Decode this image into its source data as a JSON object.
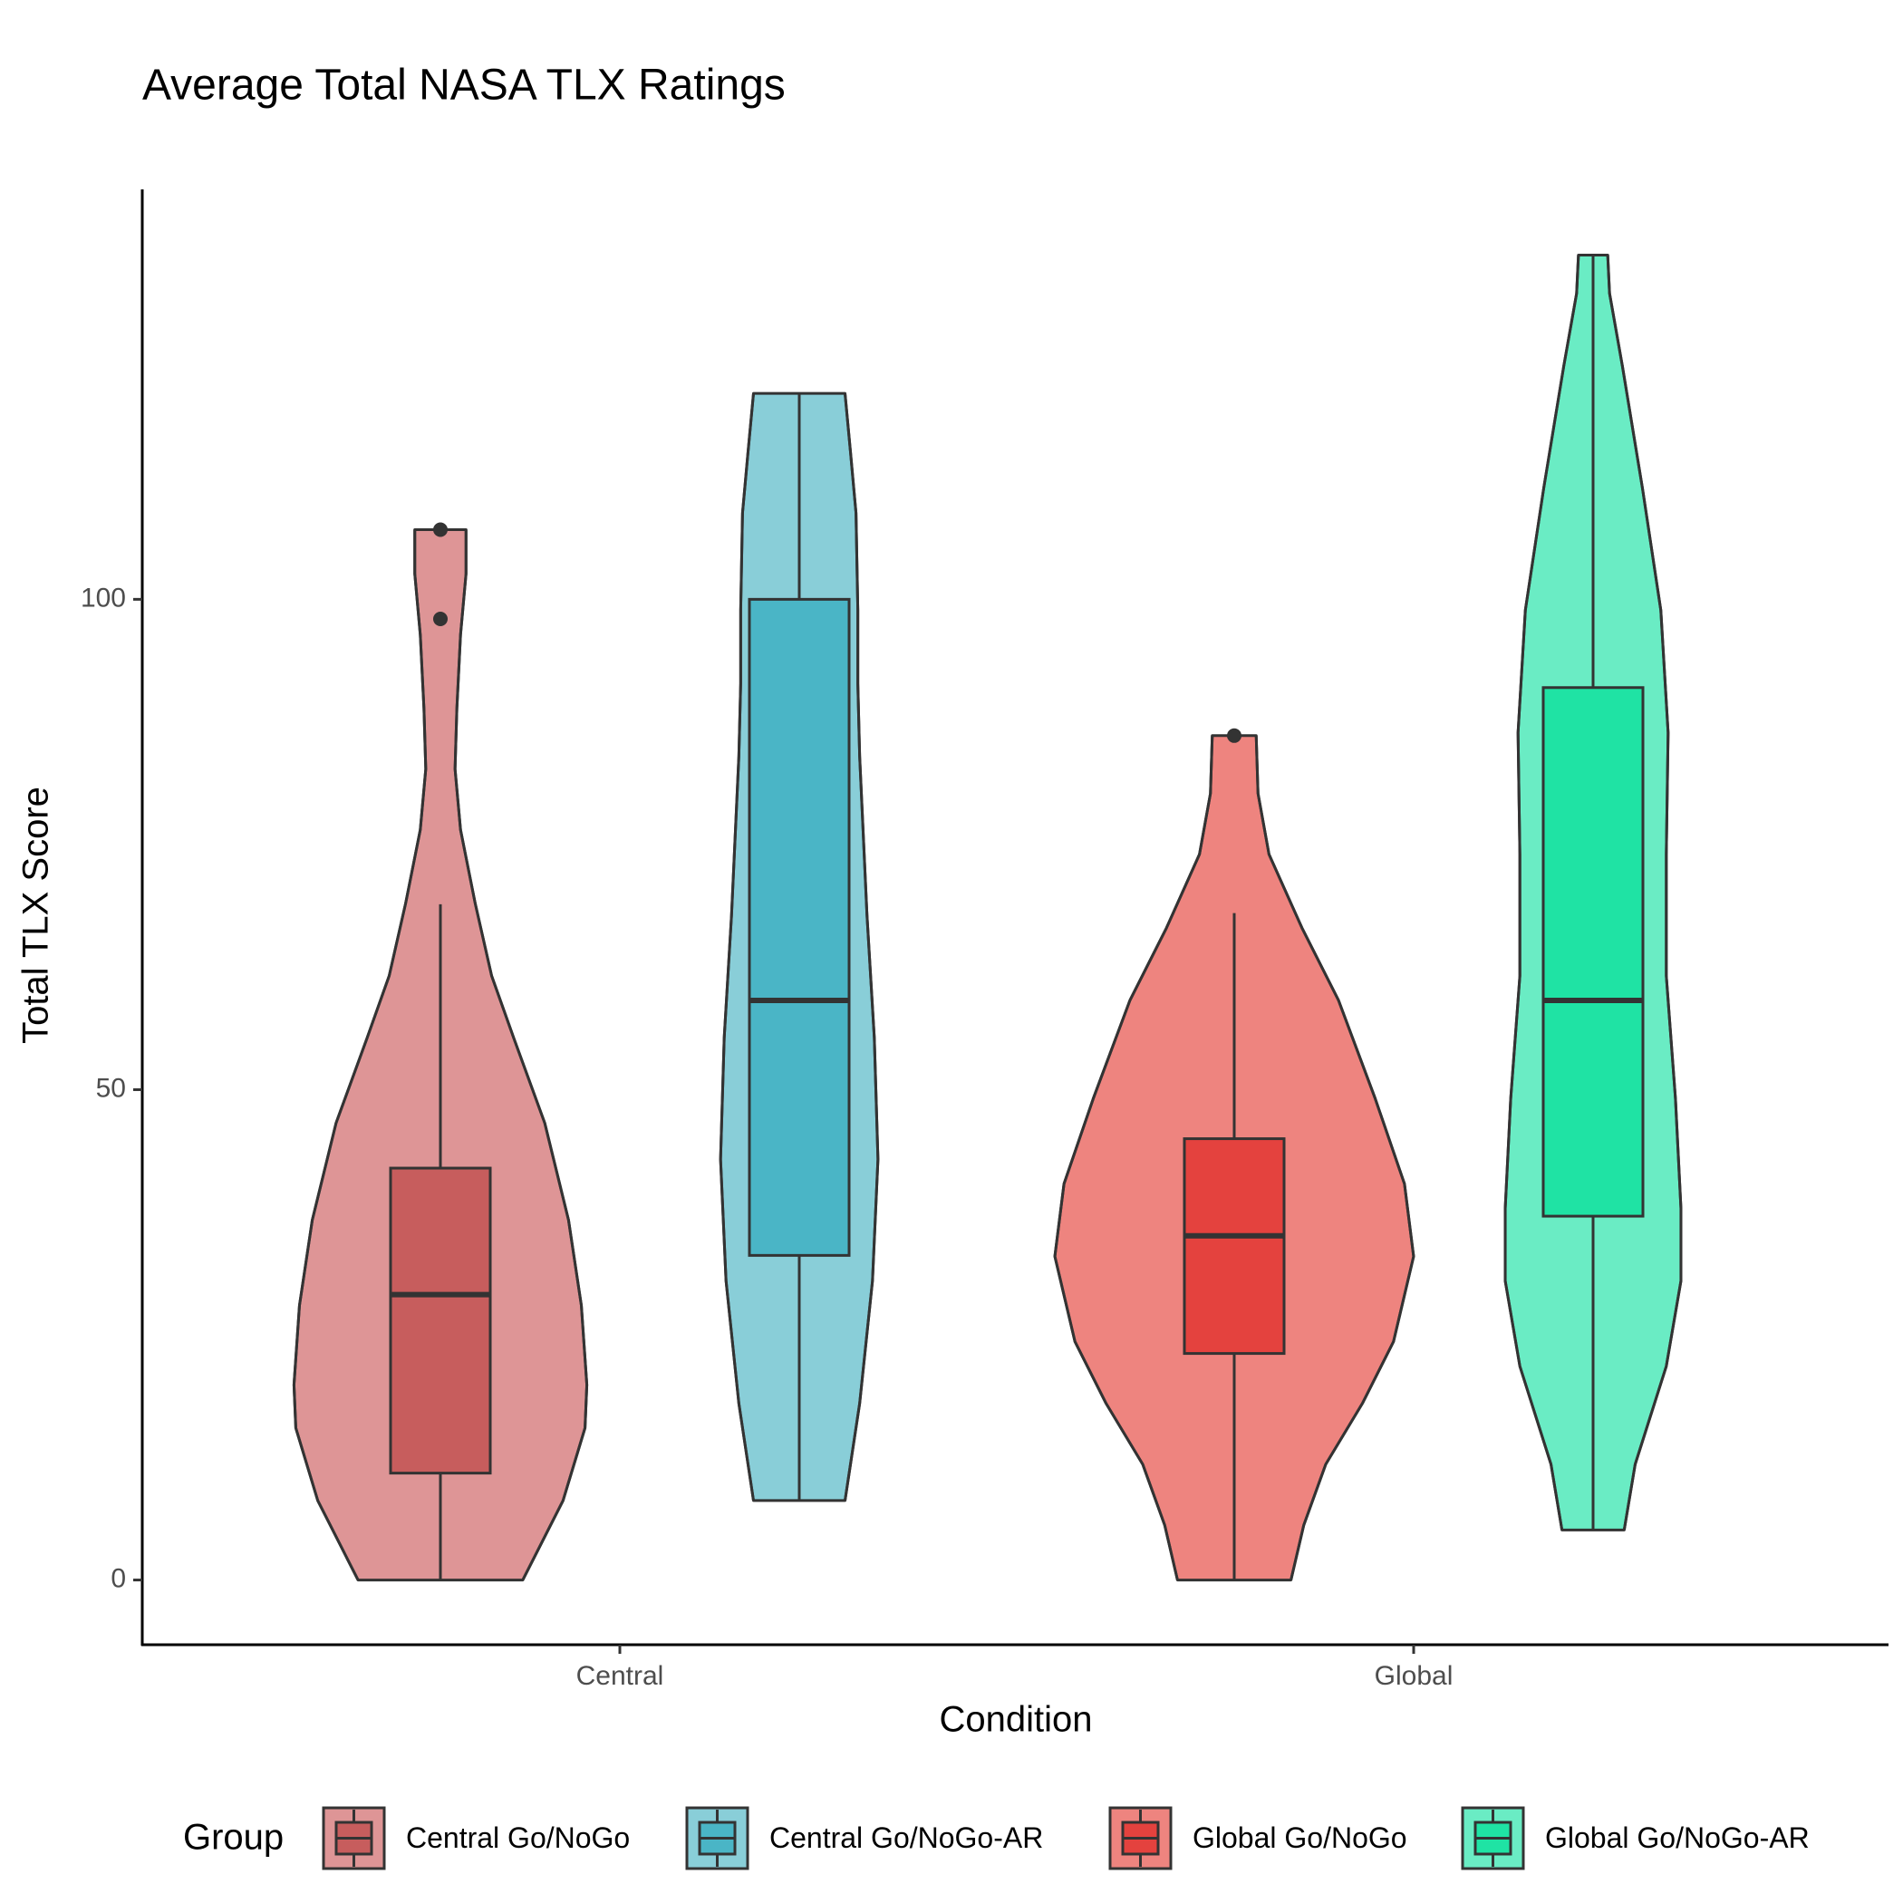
{
  "chart_data": {
    "type": "violin",
    "title": "Average Total NASA TLX Ratings",
    "x_label": "Condition",
    "y_label": "Total TLX Score",
    "legend_title": "Group",
    "categories": [
      "Central",
      "Global"
    ],
    "ylim": [
      -6.6,
      141.8
    ],
    "yticks": [
      0,
      50,
      100
    ],
    "series": [
      {
        "name": "Central Go/NoGo",
        "category": "Central",
        "color": "#c75d5d",
        "violin_color": "#de9596",
        "whisker_low": 0,
        "q1": 10.9,
        "median": 29.1,
        "q3": 42.0,
        "whisker_high": 68.9,
        "outliers": [
          98.0,
          107.1
        ],
        "violin": {
          "y": [
            0,
            8.1,
            15.5,
            19.9,
            28,
            36.7,
            46.6,
            55.3,
            61.6,
            69,
            76.5,
            82.7,
            88.9,
            96.4,
            102.6,
            107.1
          ],
          "density": [
            0.45,
            0.67,
            0.79,
            0.8,
            0.77,
            0.7,
            0.57,
            0.4,
            0.28,
            0.19,
            0.11,
            0.08,
            0.09,
            0.11,
            0.14,
            0.14
          ]
        }
      },
      {
        "name": "Central Go/NoGo-AR",
        "category": "Central",
        "color": "#4ab5c6",
        "violin_color": "#89ced8",
        "whisker_low": 8.1,
        "q1": 33.1,
        "median": 59.1,
        "q3": 100,
        "whisker_high": 121.0,
        "outliers": [],
        "violin": {
          "y": [
            8.1,
            18,
            30.5,
            42.9,
            55.3,
            67.8,
            84,
            91.4,
            98.9,
            108.8,
            115,
            121
          ],
          "density": [
            0.25,
            0.33,
            0.4,
            0.43,
            0.41,
            0.37,
            0.33,
            0.32,
            0.32,
            0.31,
            0.28,
            0.25
          ]
        }
      },
      {
        "name": "Global Go/NoGo",
        "category": "Global",
        "color": "#e4423e",
        "violin_color": "#ee847f",
        "whisker_low": 0,
        "q1": 23.1,
        "median": 35.1,
        "q3": 45.0,
        "whisker_high": 68.0,
        "outliers": [
          86.1
        ],
        "violin": {
          "y": [
            0,
            5.6,
            11.8,
            18,
            24.3,
            33,
            40.4,
            49.1,
            59.1,
            66.5,
            74,
            80.2,
            86.1
          ],
          "density": [
            0.31,
            0.38,
            0.5,
            0.7,
            0.87,
            0.98,
            0.93,
            0.77,
            0.57,
            0.37,
            0.19,
            0.13,
            0.12
          ]
        }
      },
      {
        "name": "Global Go/NoGo-AR",
        "category": "Global",
        "color": "#1fe3a4",
        "violin_color": "#6aecc4",
        "whisker_low": 5.1,
        "q1": 37.1,
        "median": 59.1,
        "q3": 91.0,
        "whisker_high": 135.1,
        "outliers": [],
        "violin": {
          "y": [
            5.1,
            11.8,
            21.8,
            30.5,
            37.9,
            49.1,
            61.6,
            74,
            86.4,
            98.9,
            111.3,
            123.8,
            131.2,
            135.1
          ],
          "density": [
            0.17,
            0.23,
            0.4,
            0.48,
            0.48,
            0.45,
            0.4,
            0.4,
            0.41,
            0.37,
            0.27,
            0.16,
            0.09,
            0.08
          ]
        }
      }
    ]
  }
}
